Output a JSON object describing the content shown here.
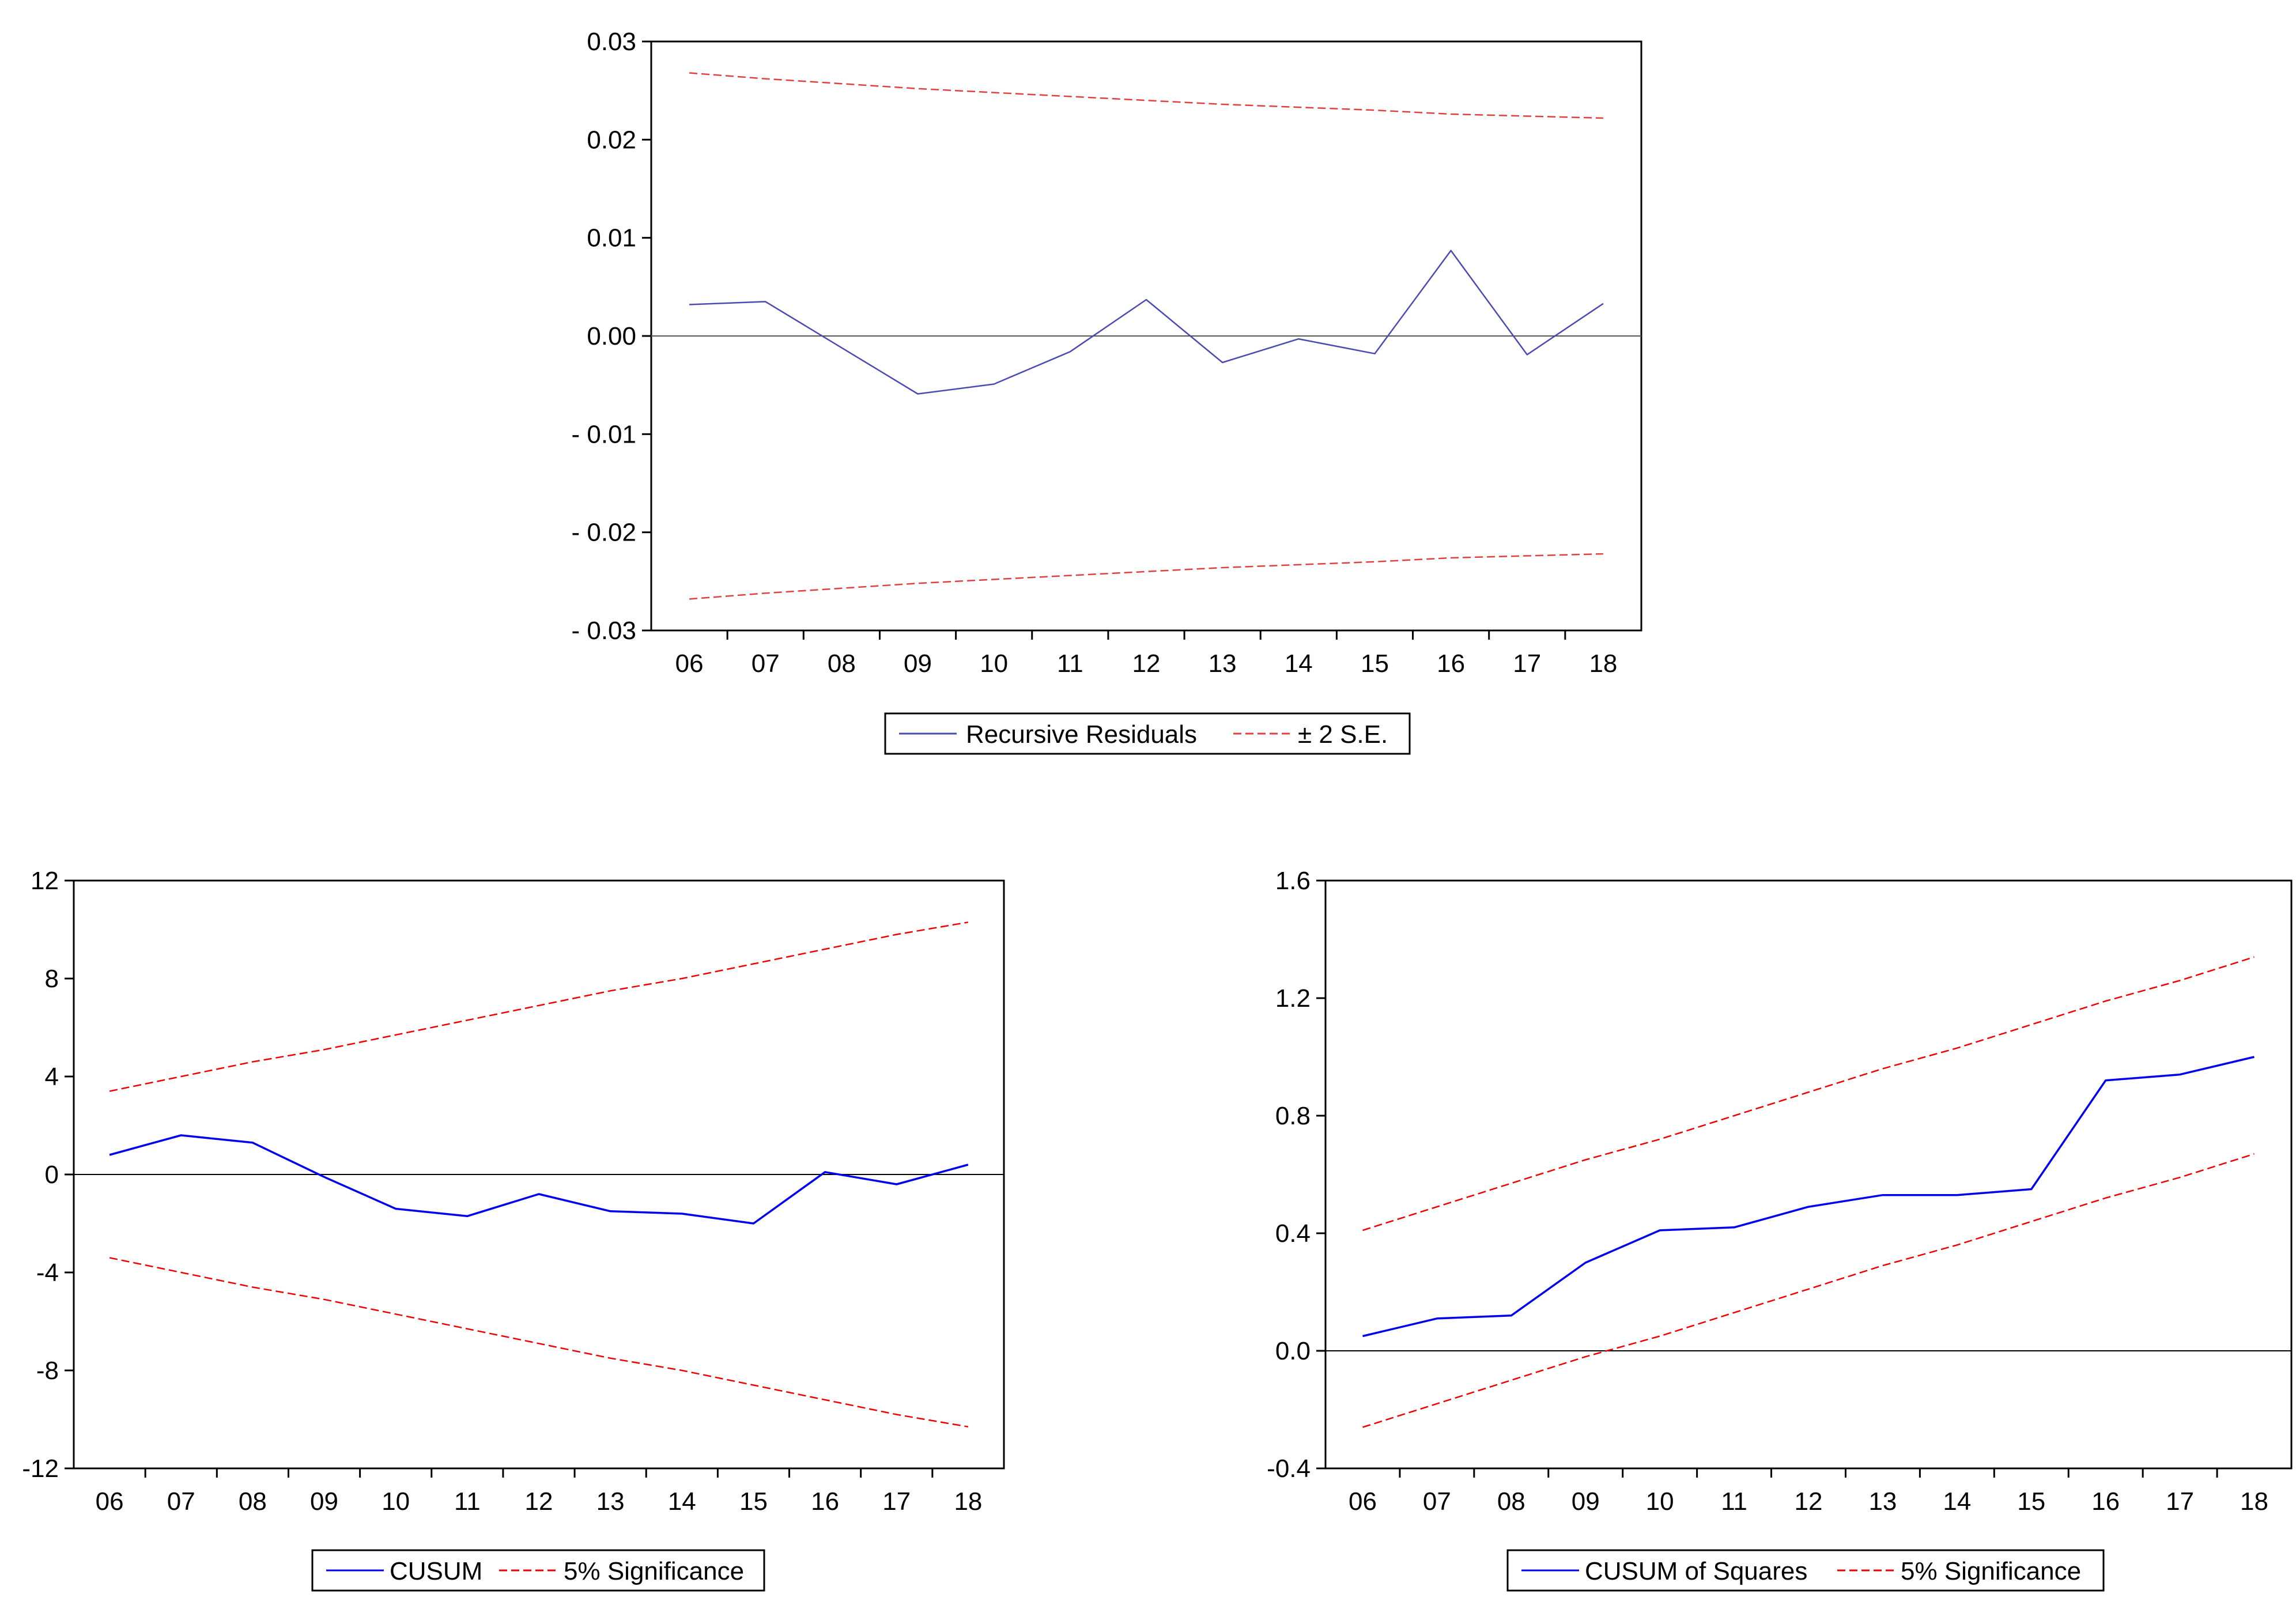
{
  "colors": {
    "residual_series": "#4a4ab0",
    "band_residual": "#e04040",
    "cusum_series": "#0000ee",
    "band": "#ee0000",
    "axis": "#000000",
    "zero_line": "#555555"
  },
  "chart_data": [
    {
      "type": "line",
      "id": "recursive-residuals",
      "categories": [
        "06",
        "07",
        "08",
        "09",
        "10",
        "11",
        "12",
        "13",
        "14",
        "15",
        "16",
        "17",
        "18"
      ],
      "ylim": [
        -0.03,
        0.03
      ],
      "yticks": [
        0.03,
        0.02,
        0.01,
        0.0,
        -0.01,
        -0.02,
        -0.03
      ],
      "ytick_labels": [
        "0.03",
        "0.02",
        "0.01",
        "0.00",
        "- 0.01",
        "- 0.02",
        "- 0.03"
      ],
      "series": [
        {
          "name": "Recursive Residuals",
          "style": "solid",
          "values": [
            0.0032,
            0.0035,
            -0.0012,
            -0.0059,
            -0.0049,
            -0.0016,
            0.0037,
            -0.0027,
            -0.0003,
            -0.0018,
            0.0087,
            -0.0019,
            0.0033
          ]
        },
        {
          "name": "± 2 S.E.",
          "style": "dashed",
          "values": [
            0.0268,
            0.0262,
            0.0257,
            0.0252,
            0.0248,
            0.0244,
            0.024,
            0.0236,
            0.0233,
            0.023,
            0.0226,
            0.0224,
            0.0222
          ]
        },
        {
          "name": "",
          "style": "dashed",
          "values": [
            -0.0268,
            -0.0262,
            -0.0257,
            -0.0252,
            -0.0248,
            -0.0244,
            -0.024,
            -0.0236,
            -0.0233,
            -0.023,
            -0.0226,
            -0.0224,
            -0.0222
          ]
        }
      ],
      "legend": [
        "Recursive Residuals",
        "± 2 S.E."
      ]
    },
    {
      "type": "line",
      "id": "cusum",
      "categories": [
        "06",
        "07",
        "08",
        "09",
        "10",
        "11",
        "12",
        "13",
        "14",
        "15",
        "16",
        "17",
        "18"
      ],
      "ylim": [
        -12,
        12
      ],
      "yticks": [
        12,
        8,
        4,
        0,
        -4,
        -8,
        -12
      ],
      "ytick_labels": [
        "12",
        "8",
        "4",
        "0",
        "-4",
        "-8",
        "-12"
      ],
      "series": [
        {
          "name": "CUSUM",
          "style": "solid",
          "values": [
            0.8,
            1.6,
            1.3,
            -0.1,
            -1.4,
            -1.7,
            -0.8,
            -1.5,
            -1.6,
            -2.0,
            0.1,
            -0.4,
            0.4
          ]
        },
        {
          "name": "5% Significance",
          "style": "dashed",
          "values": [
            3.4,
            4.0,
            4.6,
            5.1,
            5.7,
            6.3,
            6.9,
            7.5,
            8.0,
            8.6,
            9.2,
            9.8,
            10.3
          ]
        },
        {
          "name": "",
          "style": "dashed",
          "values": [
            -3.4,
            -4.0,
            -4.6,
            -5.1,
            -5.7,
            -6.3,
            -6.9,
            -7.5,
            -8.0,
            -8.6,
            -9.2,
            -9.8,
            -10.3
          ]
        }
      ],
      "legend": [
        "CUSUM",
        "5% Significance"
      ]
    },
    {
      "type": "line",
      "id": "cusum-of-squares",
      "categories": [
        "06",
        "07",
        "08",
        "09",
        "10",
        "11",
        "12",
        "13",
        "14",
        "15",
        "16",
        "17",
        "18"
      ],
      "ylim": [
        -0.4,
        1.6
      ],
      "yticks": [
        1.6,
        1.2,
        0.8,
        0.4,
        0.0,
        -0.4
      ],
      "ytick_labels": [
        "1.6",
        "1.2",
        "0.8",
        "0.4",
        "0.0",
        "-0.4"
      ],
      "series": [
        {
          "name": "CUSUM of Squares",
          "style": "solid",
          "values": [
            0.05,
            0.11,
            0.12,
            0.3,
            0.41,
            0.42,
            0.49,
            0.53,
            0.53,
            0.55,
            0.92,
            0.94,
            1.0
          ]
        },
        {
          "name": "5% Significance",
          "style": "dashed",
          "values": [
            0.41,
            0.49,
            0.57,
            0.65,
            0.72,
            0.8,
            0.88,
            0.96,
            1.03,
            1.11,
            1.19,
            1.26,
            1.34
          ]
        },
        {
          "name": "",
          "style": "dashed",
          "values": [
            -0.26,
            -0.18,
            -0.1,
            -0.02,
            0.05,
            0.13,
            0.21,
            0.29,
            0.36,
            0.44,
            0.52,
            0.59,
            0.67
          ]
        }
      ],
      "legend": [
        "CUSUM of Squares",
        "5% Significance"
      ]
    }
  ]
}
